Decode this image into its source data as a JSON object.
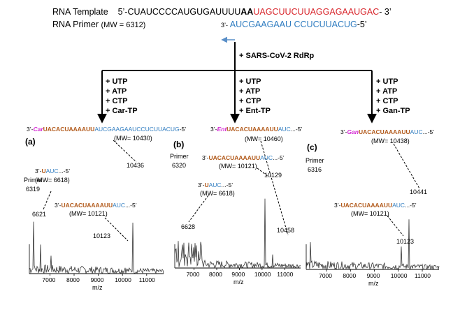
{
  "template": {
    "label": "RNA Template",
    "prefix": "5’-CUAUCCCCAUGUGAUUUU",
    "bold": "AA",
    "red": "UAGCUUCUUAGGAGAAUGAC",
    "suffix": "- 3’"
  },
  "primer": {
    "label": "RNA Primer",
    "mw": "(MW = 6312)",
    "prime3": "3’-",
    "seq": " AUCGAAGAAU CCUCUUACUG",
    "prime5": "-5’"
  },
  "enzyme": "+ SARS-CoV-2 RdRp",
  "branches": [
    {
      "reagents": [
        "+ UTP",
        "+ ATP",
        "+ CTP",
        "+ Car-TP"
      ]
    },
    {
      "reagents": [
        "+ UTP",
        "+ ATP",
        "+ CTP",
        "+ Ent-TP"
      ]
    },
    {
      "reagents": [
        "+ UTP",
        "+ ATP",
        "+ CTP",
        "+ Gan-TP"
      ]
    }
  ],
  "panels": [
    {
      "letter": "(a)",
      "prod_prefix": "3’-",
      "prod_nuc": "Car",
      "prod_brown": "UACACUAAAAUU",
      "prod_blue": "AUCGAAGAAUCCUCUUACUG",
      "prod_suffix": "-5’",
      "prod_mw": "(MW= 10430)",
      "ann1_prefix": "3’-",
      "ann1_brown": "U",
      "ann1_blue": "AUC",
      "ann1_suffix": "...-5’",
      "ann1_mw": "(MW= 6618)",
      "ann2_prefix": "3’-",
      "ann2_brown": "UACACUAAAAUU",
      "ann2_blue": "AUC",
      "ann2_suffix": "...-5’",
      "ann2_mw": "(MW= 10121)",
      "primer_word": "Primer",
      "primer_mass": "6319",
      "peak1": "6621",
      "peak2": "10123",
      "peak_main": "10436",
      "xticks": [
        "7000",
        "8000",
        "9000",
        "10000",
        "11000"
      ],
      "xlabel": "m/z"
    },
    {
      "letter": "(b)",
      "prod_prefix": "3’-",
      "prod_nuc": "Ent",
      "prod_brown": "UACACUAAAAUU",
      "prod_blue": "AUC",
      "prod_suffix": "...-5’",
      "prod_mw": "(MW= 10460)",
      "ann1_prefix": "3’-",
      "ann1_brown": "U",
      "ann1_blue": "AUC",
      "ann1_suffix": "...-5’",
      "ann1_mw": "(MW= 6618)",
      "ann2_prefix": "3’-",
      "ann2_brown": "UACACUAAAAUU",
      "ann2_blue": "AUC",
      "ann2_suffix": "...-5’",
      "ann2_mw": "(MW= 10121)",
      "primer_word": "Primer",
      "primer_mass": "6320",
      "peak1": "6628",
      "peak2": "10129",
      "peak_main": "10458",
      "xticks": [
        "7000",
        "8000",
        "9000",
        "10000",
        "11000"
      ],
      "xlabel": "m/z"
    },
    {
      "letter": "(c)",
      "prod_prefix": "3’-",
      "prod_nuc": "Gan",
      "prod_brown": "UACACUAAAAUU",
      "prod_blue": "AUC",
      "prod_suffix": "...-5’",
      "prod_mw": "(MW= 10438)",
      "ann2_prefix": "3’-",
      "ann2_brown": "UACACUAAAAUU",
      "ann2_blue": "AUC",
      "ann2_suffix": "...-5’",
      "ann2_mw": "(MW= 10121)",
      "primer_word": "Primer",
      "primer_mass": "6316",
      "peak2": "10123",
      "peak_main": "10441",
      "xticks": [
        "7000",
        "8000",
        "9000",
        "10000",
        "11000"
      ],
      "xlabel": "m/z"
    }
  ]
}
